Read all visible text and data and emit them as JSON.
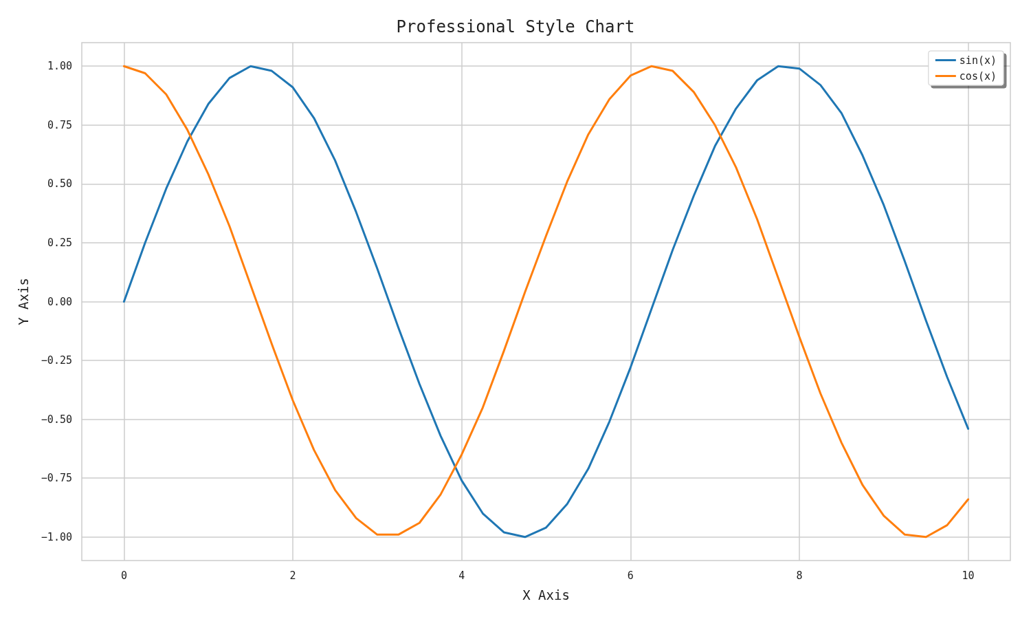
{
  "chart_data": {
    "type": "line",
    "title": "Professional Style Chart",
    "xlabel": "X Axis",
    "ylabel": "Y Axis",
    "x": [
      0,
      0.25,
      0.5,
      0.75,
      1,
      1.25,
      1.5,
      1.75,
      2,
      2.25,
      2.5,
      2.75,
      3,
      3.25,
      3.5,
      3.75,
      4,
      4.25,
      4.5,
      4.75,
      5,
      5.25,
      5.5,
      5.75,
      6,
      6.25,
      6.5,
      6.75,
      7,
      7.25,
      7.5,
      7.75,
      8,
      8.25,
      8.5,
      8.75,
      9,
      9.25,
      9.5,
      9.75,
      10
    ],
    "series": [
      {
        "name": "sin(x)",
        "color": "#1f77b4",
        "values": [
          0,
          0.25,
          0.48,
          0.68,
          0.84,
          0.95,
          1.0,
          0.98,
          0.91,
          0.78,
          0.6,
          0.38,
          0.14,
          -0.11,
          -0.35,
          -0.57,
          -0.76,
          -0.9,
          -0.98,
          -1.0,
          -0.96,
          -0.86,
          -0.71,
          -0.51,
          -0.28,
          -0.03,
          0.22,
          0.45,
          0.66,
          0.82,
          0.94,
          1.0,
          0.99,
          0.92,
          0.8,
          0.62,
          0.41,
          0.17,
          -0.08,
          -0.32,
          -0.54
        ]
      },
      {
        "name": "cos(x)",
        "color": "#ff7f0e",
        "values": [
          1.0,
          0.97,
          0.88,
          0.73,
          0.54,
          0.32,
          0.07,
          -0.18,
          -0.42,
          -0.63,
          -0.8,
          -0.92,
          -0.99,
          -0.99,
          -0.94,
          -0.82,
          -0.65,
          -0.45,
          -0.21,
          0.04,
          0.28,
          0.51,
          0.71,
          0.86,
          0.96,
          1.0,
          0.98,
          0.89,
          0.75,
          0.57,
          0.35,
          0.1,
          -0.15,
          -0.39,
          -0.6,
          -0.78,
          -0.91,
          -0.99,
          -1.0,
          -0.95,
          -0.84
        ]
      }
    ],
    "xlim": [
      -0.5,
      10.5
    ],
    "xticks": [
      0,
      2,
      4,
      6,
      8,
      10
    ],
    "ylim": [
      -1.1,
      1.1
    ],
    "yticks": [
      {
        "value": -1,
        "label": "−1.00"
      },
      {
        "value": -0.75,
        "label": "−0.75"
      },
      {
        "value": -0.5,
        "label": "−0.50"
      },
      {
        "value": -0.25,
        "label": "−0.25"
      },
      {
        "value": 0,
        "label": "0.00"
      },
      {
        "value": 0.25,
        "label": "0.25"
      },
      {
        "value": 0.5,
        "label": "0.50"
      },
      {
        "value": 0.75,
        "label": "0.75"
      },
      {
        "value": 1,
        "label": "1.00"
      }
    ],
    "grid": true,
    "legend": "top right"
  }
}
